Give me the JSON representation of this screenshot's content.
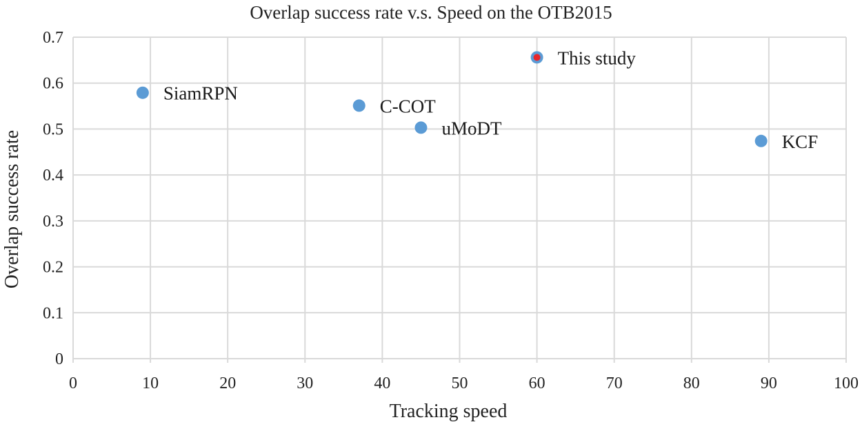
{
  "chart_data": {
    "type": "scatter",
    "title": "Overlap success rate v.s. Speed on the OTB2015",
    "xlabel": "Tracking speed",
    "ylabel": "Overlap success rate",
    "xlim": [
      0,
      100
    ],
    "ylim": [
      0,
      0.7
    ],
    "x_ticks": [
      "0",
      "10",
      "20",
      "30",
      "40",
      "50",
      "60",
      "70",
      "80",
      "90",
      "100"
    ],
    "y_ticks": [
      "0",
      "0.1",
      "0.2",
      "0.3",
      "0.4",
      "0.5",
      "0.6",
      "0.7"
    ],
    "grid": true,
    "marker_color": "#5b9bd5",
    "highlight_color": "#e8262b",
    "points": [
      {
        "label": "SiamRPN",
        "x": 9,
        "y": 0.579,
        "highlight": false
      },
      {
        "label": "C-COT",
        "x": 37,
        "y": 0.551,
        "highlight": false
      },
      {
        "label": "uMoDT",
        "x": 45,
        "y": 0.503,
        "highlight": false
      },
      {
        "label": "This study",
        "x": 60,
        "y": 0.656,
        "highlight": true
      },
      {
        "label": "KCF",
        "x": 89,
        "y": 0.474,
        "highlight": false
      }
    ]
  }
}
